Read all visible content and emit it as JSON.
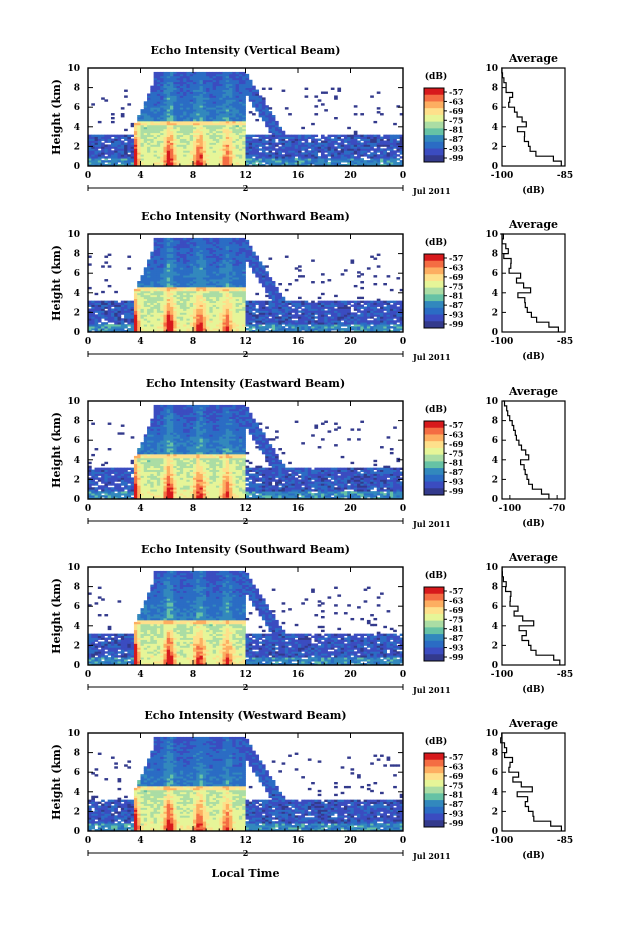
{
  "xlabel": "Local Time",
  "ylabel": "Height (km)",
  "date_label": "Jul 2011",
  "day_label": "2",
  "x_ticks": [
    "0",
    "4",
    "8",
    "12",
    "16",
    "20",
    "0"
  ],
  "y_ticks": [
    "0",
    "2",
    "4",
    "6",
    "8",
    "10"
  ],
  "colorbar": {
    "unit": "(dB)",
    "ticks": [
      "-57",
      "-63",
      "-69",
      "-75",
      "-81",
      "-87",
      "-93",
      "-99"
    ],
    "colors": [
      "#d7191c",
      "#f46d43",
      "#fdae61",
      "#fee08b",
      "#e6f598",
      "#abdda4",
      "#66c2a5",
      "#3288bd",
      "#2b6cc4",
      "#3b4cc0",
      "#333a8c"
    ]
  },
  "profile": {
    "title": "Average",
    "xlabel": "(dB)"
  },
  "chart_data": [
    {
      "type": "heatmap",
      "title": "Echo Intensity (Vertical Beam)",
      "xlabel": "",
      "ylabel": "Height (km)",
      "xlim": [
        0,
        24
      ],
      "ylim": [
        0,
        10
      ],
      "zlim": [
        -99,
        -57
      ],
      "precip_hours": [
        3.5,
        12
      ],
      "profile_ticks": [
        "-100",
        "-85"
      ],
      "profile_xlim": [
        -100,
        -85
      ],
      "profile_height": [
        0,
        0.5,
        1,
        1.5,
        2,
        2.5,
        3,
        3.5,
        4,
        4.5,
        5,
        5.5,
        6,
        6.5,
        7,
        7.5,
        8,
        8.5,
        9,
        9.5,
        10
      ],
      "profile_db": [
        -86,
        -88,
        -92,
        -93,
        -94,
        -95,
        -95,
        -96,
        -94,
        -95,
        -97,
        -97,
        -98,
        -98,
        -98,
        -99,
        -99,
        -99.5,
        -100,
        -100,
        -100
      ]
    },
    {
      "type": "heatmap",
      "title": "Echo Intensity (Northward Beam)",
      "xlabel": "",
      "ylabel": "Height (km)",
      "xlim": [
        0,
        24
      ],
      "ylim": [
        0,
        10
      ],
      "zlim": [
        -99,
        -57
      ],
      "precip_hours": [
        3.5,
        12
      ],
      "profile_ticks": [
        "-100",
        "-85"
      ],
      "profile_xlim": [
        -100,
        -85
      ],
      "profile_height": [
        0,
        0.5,
        1,
        1.5,
        2,
        2.5,
        3,
        3.5,
        4,
        4.5,
        5,
        5.5,
        6,
        6.5,
        7,
        7.5,
        8,
        8.5,
        9,
        9.5,
        10
      ],
      "profile_db": [
        -86,
        -89,
        -92,
        -93,
        -94,
        -95,
        -94,
        -96,
        -93,
        -95,
        -97,
        -96,
        -98,
        -98,
        -98,
        -99,
        -99,
        -99.5,
        -100,
        -100,
        -100
      ]
    },
    {
      "type": "heatmap",
      "title": "Echo Intensity (Eastward Beam)",
      "xlabel": "",
      "ylabel": "Height (km)",
      "xlim": [
        0,
        24
      ],
      "ylim": [
        0,
        10
      ],
      "zlim": [
        -99,
        -57
      ],
      "precip_hours": [
        3.5,
        12
      ],
      "profile_ticks": [
        "-100",
        "-70"
      ],
      "profile_xlim": [
        -105,
        -65
      ],
      "profile_height": [
        0,
        0.5,
        1,
        1.5,
        2,
        2.5,
        3,
        3.5,
        4,
        4.5,
        5,
        5.5,
        6,
        6.5,
        7,
        7.5,
        8,
        8.5,
        9,
        9.5,
        10
      ],
      "profile_db": [
        -75,
        -80,
        -86,
        -88,
        -89,
        -90,
        -91,
        -93,
        -88,
        -90,
        -93,
        -94,
        -96,
        -97,
        -98,
        -99,
        -100,
        -101,
        -102,
        -103,
        -104
      ]
    },
    {
      "type": "heatmap",
      "title": "Echo Intensity (Southward Beam)",
      "xlabel": "",
      "ylabel": "Height (km)",
      "xlim": [
        0,
        24
      ],
      "ylim": [
        0,
        10
      ],
      "zlim": [
        -99,
        -57
      ],
      "precip_hours": [
        3.5,
        12
      ],
      "profile_ticks": [
        "-100",
        "-85"
      ],
      "profile_xlim": [
        -100,
        -85
      ],
      "profile_height": [
        0,
        0.5,
        1,
        1.5,
        2,
        2.5,
        3,
        3.5,
        4,
        4.5,
        5,
        5.5,
        6,
        6.5,
        7,
        7.5,
        8,
        8.5,
        9,
        9.5,
        10
      ],
      "profile_db": [
        -86,
        -88,
        -92,
        -93,
        -94,
        -95,
        -94,
        -96,
        -93,
        -95,
        -97,
        -96,
        -98,
        -98,
        -98,
        -99,
        -99,
        -99.5,
        -100,
        -100,
        -100
      ]
    },
    {
      "type": "heatmap",
      "title": "Echo Intensity (Westward Beam)",
      "xlabel": "Local Time",
      "ylabel": "Height (km)",
      "xlim": [
        0,
        24
      ],
      "ylim": [
        0,
        10
      ],
      "zlim": [
        -99,
        -57
      ],
      "precip_hours": [
        3.5,
        12
      ],
      "profile_ticks": [
        "-100",
        "-85"
      ],
      "profile_xlim": [
        -100,
        -85
      ],
      "profile_height": [
        0,
        0.5,
        1,
        1.5,
        2,
        2.5,
        3,
        3.5,
        4,
        4.5,
        5,
        5.5,
        6,
        6.5,
        7,
        7.5,
        8,
        8.5,
        9,
        9.5,
        10
      ],
      "profile_db": [
        -86,
        -88,
        -92,
        -93,
        -94,
        -95,
        -94,
        -96,
        -93,
        -95,
        -97,
        -96,
        -98,
        -98,
        -98,
        -99,
        -99,
        -99.5,
        -100,
        -100,
        -100
      ]
    }
  ]
}
